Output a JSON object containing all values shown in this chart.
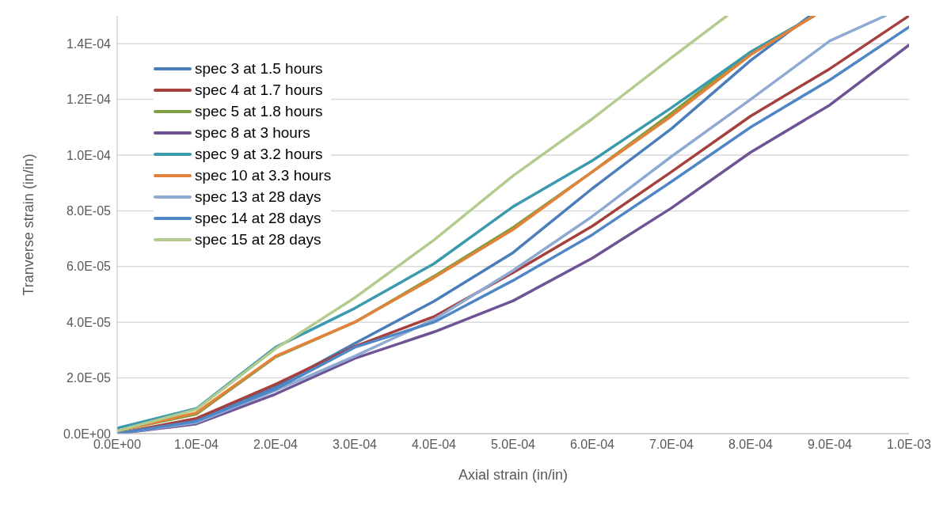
{
  "chart_data": {
    "type": "line",
    "xlabel": "Axial strain (in/in)",
    "ylabel": "Tranverse strain (in/in)",
    "xlim": [
      0,
      0.001
    ],
    "ylim": [
      0,
      0.00015
    ],
    "xticks": [
      {
        "value": 0,
        "label": "0.0E+00"
      },
      {
        "value": 0.0001,
        "label": "1.0E-04"
      },
      {
        "value": 0.0002,
        "label": "2.0E-04"
      },
      {
        "value": 0.0003,
        "label": "3.0E-04"
      },
      {
        "value": 0.0004,
        "label": "4.0E-04"
      },
      {
        "value": 0.0005,
        "label": "5.0E-04"
      },
      {
        "value": 0.0006,
        "label": "6.0E-04"
      },
      {
        "value": 0.0007,
        "label": "7.0E-04"
      },
      {
        "value": 0.0008,
        "label": "8.0E-04"
      },
      {
        "value": 0.0009,
        "label": "9.0E-04"
      },
      {
        "value": 0.001,
        "label": "1.0E-03"
      }
    ],
    "yticks": [
      {
        "value": 0,
        "label": "0.0E+00"
      },
      {
        "value": 2e-05,
        "label": "2.0E-05"
      },
      {
        "value": 4e-05,
        "label": "4.0E-05"
      },
      {
        "value": 6e-05,
        "label": "6.0E-05"
      },
      {
        "value": 8e-05,
        "label": "8.0E-05"
      },
      {
        "value": 0.0001,
        "label": "1.0E-04"
      },
      {
        "value": 0.00012,
        "label": "1.2E-04"
      },
      {
        "value": 0.00014,
        "label": "1.4E-04"
      }
    ],
    "grid": "y",
    "legend": "top left",
    "marker": "none",
    "line_style": "solid",
    "series": [
      {
        "name": "spec 3 at 1.5 hours",
        "color": "#4a7ebb",
        "x": [
          0,
          0.0001,
          0.0002,
          0.0003,
          0.0004,
          0.0005,
          0.0006,
          0.0007,
          0.0008,
          0.000875
        ],
        "values": [
          0,
          5e-06,
          1.69e-05,
          3.24e-05,
          4.75e-05,
          6.5e-05,
          8.8e-05,
          0.0001095,
          0.000134,
          0.00015
        ]
      },
      {
        "name": "spec 4 at 1.7 hours",
        "color": "#a5403d",
        "x": [
          0,
          0.0001,
          0.0002,
          0.0003,
          0.0004,
          0.0005,
          0.0006,
          0.0007,
          0.0008,
          0.0009,
          0.001
        ],
        "values": [
          0,
          5.5e-06,
          1.77e-05,
          3.13e-05,
          4.2e-05,
          5.78e-05,
          7.45e-05,
          9.4e-05,
          0.000114,
          0.000131,
          0.00015
        ]
      },
      {
        "name": "spec 5 at 1.8 hours",
        "color": "#7f9e3f",
        "x": [
          0,
          0.0001,
          0.0002,
          0.0003,
          0.0004,
          0.0005,
          0.0006,
          0.0007,
          0.0008,
          0.00088
        ],
        "values": [
          1e-06,
          7e-06,
          2.75e-05,
          4e-05,
          5.65e-05,
          7.4e-05,
          9.4e-05,
          0.000115,
          0.000137,
          0.00015
        ]
      },
      {
        "name": "spec 8 at 3 hours",
        "color": "#6e5494",
        "x": [
          0,
          0.0001,
          0.0002,
          0.0003,
          0.0004,
          0.0005,
          0.0006,
          0.0007,
          0.0008,
          0.0009,
          0.001
        ],
        "values": [
          0,
          3.5e-06,
          1.42e-05,
          2.7e-05,
          3.65e-05,
          4.77e-05,
          6.3e-05,
          8.1e-05,
          0.000101,
          0.000118,
          0.0001395
        ]
      },
      {
        "name": "spec 9 at 3.2 hours",
        "color": "#3a9aae",
        "x": [
          0,
          0.0001,
          0.0002,
          0.0003,
          0.0004,
          0.0005,
          0.0006,
          0.0007,
          0.0008,
          0.00088
        ],
        "values": [
          2e-06,
          9e-06,
          3.1e-05,
          4.5e-05,
          6.1e-05,
          8.15e-05,
          9.8e-05,
          0.000117,
          0.000137,
          0.00015
        ]
      },
      {
        "name": "spec 10 at 3.3 hours",
        "color": "#e3823a",
        "x": [
          0,
          0.0001,
          0.0002,
          0.0003,
          0.0004,
          0.0005,
          0.0006,
          0.0007,
          0.0008,
          0.00088
        ],
        "values": [
          1e-06,
          7.5e-06,
          2.78e-05,
          4e-05,
          5.6e-05,
          7.33e-05,
          9.4e-05,
          0.000114,
          0.000136,
          0.00015
        ]
      },
      {
        "name": "spec 13 at 28 days",
        "color": "#8eaad3",
        "x": [
          0,
          0.0001,
          0.0002,
          0.0003,
          0.0004,
          0.0005,
          0.0006,
          0.0007,
          0.0008,
          0.0009,
          0.00097
        ],
        "values": [
          0,
          4e-06,
          1.55e-05,
          2.78e-05,
          4.1e-05,
          5.86e-05,
          7.8e-05,
          9.95e-05,
          0.00012,
          0.000141,
          0.00015
        ]
      },
      {
        "name": "spec 14 at 28 days",
        "color": "#4f86c6",
        "x": [
          0,
          0.0001,
          0.0002,
          0.0003,
          0.0004,
          0.0005,
          0.0006,
          0.0007,
          0.0008,
          0.0009,
          0.001
        ],
        "values": [
          0,
          4.5e-06,
          1.6e-05,
          3.1e-05,
          4e-05,
          5.5e-05,
          7.14e-05,
          9.05e-05,
          0.00011,
          0.000127,
          0.000146
        ]
      },
      {
        "name": "spec 15 at 28 days",
        "color": "#b3cc8e",
        "x": [
          0,
          0.0001,
          0.0002,
          0.0003,
          0.0004,
          0.0005,
          0.0006,
          0.0007,
          0.00077
        ],
        "values": [
          1e-06,
          8.7e-06,
          3.05e-05,
          4.88e-05,
          6.95e-05,
          9.26e-05,
          0.000113,
          0.000135,
          0.00015
        ]
      }
    ]
  }
}
